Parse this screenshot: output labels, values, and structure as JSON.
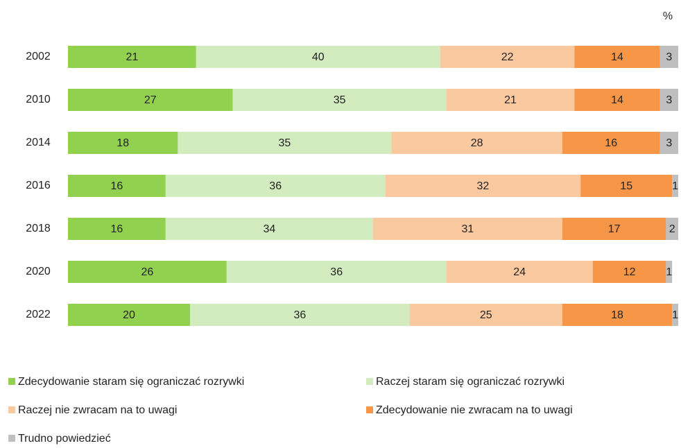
{
  "chart_data": {
    "type": "bar",
    "orientation": "horizontal",
    "stacked": true,
    "unit": "%",
    "categories": [
      "2002",
      "2010",
      "2014",
      "2016",
      "2018",
      "2020",
      "2022"
    ],
    "xlim": [
      0,
      100
    ],
    "series": [
      {
        "name": "Zdecydowanie staram się ograniczać rozrywki",
        "color": "#92d050",
        "values": [
          21,
          27,
          18,
          16,
          16,
          26,
          20
        ]
      },
      {
        "name": "Raczej staram się ograniczać rozrywki",
        "color": "#d3ecbf",
        "values": [
          40,
          35,
          35,
          36,
          34,
          36,
          36
        ]
      },
      {
        "name": "Raczej nie zwracam na to uwagi",
        "color": "#fbc9a0",
        "values": [
          22,
          21,
          28,
          32,
          31,
          24,
          25
        ]
      },
      {
        "name": "Zdecydowanie nie zwracam na to uwagi",
        "color": "#f79646",
        "values": [
          14,
          14,
          16,
          15,
          17,
          12,
          18
        ]
      },
      {
        "name": "Trudno powiedzieć",
        "color": "#bfbfbf",
        "values": [
          3,
          3,
          3,
          1,
          2,
          1,
          1
        ]
      }
    ],
    "data_labels": true
  }
}
